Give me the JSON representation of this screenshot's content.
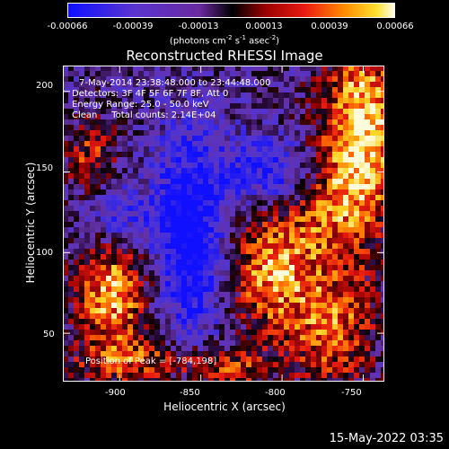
{
  "colorbar": {
    "ticks": [
      "-0.00066",
      "-0.00039",
      "-0.00013",
      "0.00013",
      "0.00039",
      "0.00066"
    ],
    "unit_main": "(photons cm",
    "unit_exp1": "-2",
    "unit_mid1": " s",
    "unit_exp2": "-1",
    "unit_mid2": " asec",
    "unit_exp3": "-2",
    "unit_end": ")"
  },
  "title": "Reconstructed RHESSI Image",
  "axes": {
    "xlabel": "Heliocentric X (arcsec)",
    "ylabel": "Heliocentric Y (arcsec)",
    "xticks": [
      "-900",
      "-850",
      "-800",
      "-750"
    ],
    "yticks": [
      "50",
      "100",
      "150",
      "200"
    ]
  },
  "annotations": {
    "time_range": "7-May-2014 23:38:48.000 to 23:44:48.000",
    "detectors": "Detectors: 3F 4F 5F 6F 7F 8F, Att 0",
    "energy": "Energy Range: 25.0 - 50.0 keV",
    "clean": "Clean     Total counts: 2.14E+04",
    "peak": "Position of Peak = [-784,198]"
  },
  "timestamp": "15-May-2022 03:35",
  "colors": {
    "background": "#000000",
    "colormap": [
      "#1010ff",
      "#4b2fd8",
      "#6a3cc0",
      "#3a1050",
      "#000000",
      "#8a0000",
      "#e01010",
      "#ff6a00",
      "#ffd020",
      "#fffce0"
    ]
  }
}
